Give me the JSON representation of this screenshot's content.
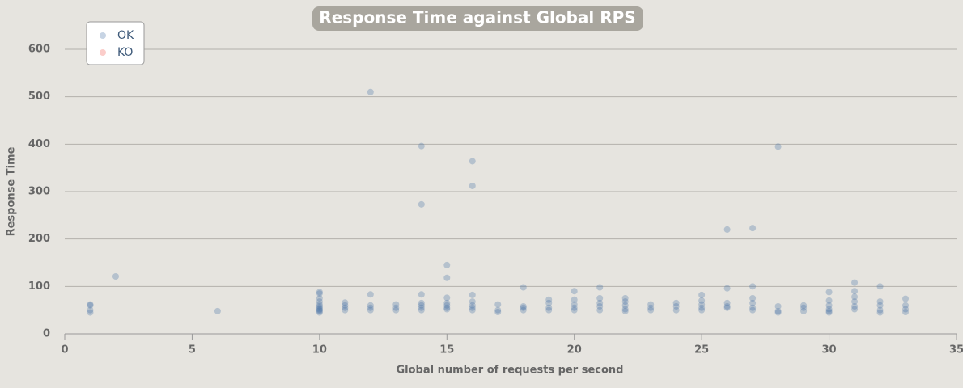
{
  "chart_data": {
    "type": "scatter",
    "title": "Response Time against Global RPS",
    "x_label": "Global number of requests per second",
    "y_label": "Response Time",
    "xlim": [
      0,
      35
    ],
    "xticks": [
      0,
      5,
      10,
      15,
      20,
      25,
      30,
      35
    ],
    "ylim": [
      0,
      600
    ],
    "yticks": [
      0,
      100,
      200,
      300,
      400,
      500,
      600
    ],
    "grid": true,
    "legend": "top-left",
    "series": [
      {
        "name": "OK",
        "color": "#4572a7",
        "x": [
          1,
          1,
          1,
          1,
          2,
          6,
          10,
          10,
          10,
          10,
          10,
          10,
          10,
          10,
          10,
          10,
          10,
          11,
          11,
          11,
          11,
          12,
          12,
          12,
          12,
          12,
          13,
          13,
          13,
          14,
          14,
          14,
          14,
          14,
          14,
          14,
          15,
          15,
          15,
          15,
          15,
          15,
          15,
          16,
          16,
          16,
          16,
          16,
          16,
          16,
          17,
          17,
          17,
          18,
          18,
          18,
          18,
          19,
          19,
          19,
          19,
          20,
          20,
          20,
          20,
          20,
          21,
          21,
          21,
          21,
          21,
          22,
          22,
          22,
          22,
          22,
          23,
          23,
          23,
          24,
          24,
          24,
          25,
          25,
          25,
          25,
          25,
          26,
          26,
          26,
          26,
          26,
          27,
          27,
          27,
          27,
          27,
          27,
          28,
          28,
          28,
          28,
          29,
          29,
          29,
          30,
          30,
          30,
          30,
          30,
          30,
          31,
          31,
          31,
          31,
          31,
          31,
          32,
          32,
          32,
          32,
          32,
          33,
          33,
          33,
          33
        ],
        "values": [
          62,
          60,
          50,
          45,
          121,
          48,
          88,
          85,
          75,
          68,
          62,
          58,
          55,
          52,
          50,
          48,
          45,
          66,
          60,
          55,
          50,
          510,
          83,
          60,
          55,
          50,
          62,
          55,
          50,
          396,
          273,
          83,
          65,
          60,
          55,
          50,
          145,
          118,
          76,
          65,
          60,
          55,
          52,
          364,
          312,
          82,
          68,
          60,
          55,
          50,
          62,
          50,
          46,
          98,
          58,
          55,
          50,
          72,
          65,
          55,
          50,
          90,
          72,
          62,
          55,
          50,
          98,
          75,
          65,
          58,
          50,
          75,
          68,
          60,
          52,
          48,
          62,
          55,
          50,
          65,
          58,
          50,
          82,
          70,
          62,
          55,
          50,
          220,
          96,
          65,
          58,
          55,
          223,
          100,
          75,
          65,
          55,
          50,
          395,
          58,
          48,
          45,
          60,
          55,
          48,
          88,
          70,
          60,
          52,
          48,
          45,
          108,
          90,
          78,
          68,
          58,
          52,
          100,
          68,
          60,
          50,
          45,
          74,
          60,
          52,
          46
        ]
      },
      {
        "name": "KO",
        "color": "#f15b4f",
        "x": [],
        "values": []
      }
    ]
  }
}
